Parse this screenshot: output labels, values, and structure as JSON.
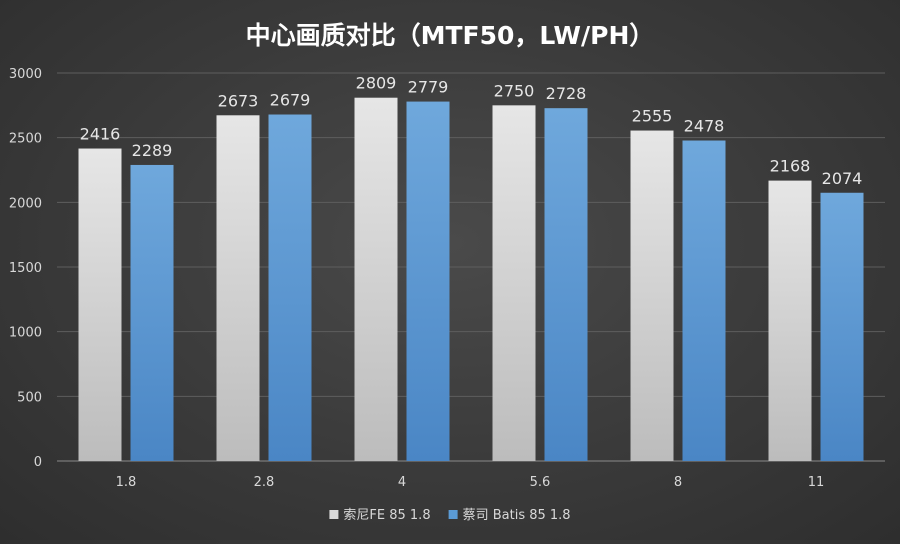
{
  "chart_data": {
    "type": "bar",
    "title": "中心画质对比（MTF50，LW/PH）",
    "xlabel": "",
    "ylabel": "",
    "categories": [
      "1.8",
      "2.8",
      "4",
      "5.6",
      "8",
      "11"
    ],
    "series": [
      {
        "name": "索尼FE 85 1.8",
        "values": [
          2416,
          2673,
          2809,
          2750,
          2555,
          2168
        ],
        "color": "#d9d9d9"
      },
      {
        "name": "蔡司 Batis 85 1.8",
        "values": [
          2289,
          2679,
          2779,
          2728,
          2478,
          2074
        ],
        "color": "#5b9bd5"
      }
    ],
    "ylim": [
      0,
      3000
    ],
    "yticks": [
      0,
      500,
      1000,
      1500,
      2000,
      2500,
      3000
    ],
    "grid": true,
    "legend_position": "bottom",
    "data_labels": true
  }
}
